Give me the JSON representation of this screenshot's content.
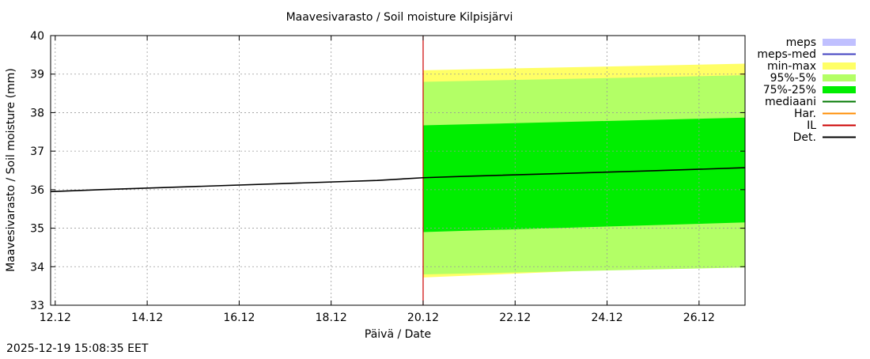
{
  "chart_data": {
    "type": "area",
    "title": "Maavesivarasto / Soil moisture   Kilpisjärvi",
    "xlabel": "Päivä / Date",
    "ylabel": "Maavesivarasto / Soil moisture (mm)",
    "xlim": [
      10.9,
      26.0
    ],
    "ylim": [
      33,
      40
    ],
    "xtick_values": [
      11.0,
      13.0,
      15.0,
      17.0,
      19.0,
      21.0,
      23.0,
      25.0
    ],
    "xtick_labels": [
      "12.12",
      "14.12",
      "16.12",
      "18.12",
      "20.12",
      "22.12",
      "24.12",
      "26.12"
    ],
    "yticks": [
      33,
      34,
      35,
      36,
      37,
      38,
      39,
      40
    ],
    "grid": true,
    "legend_position": "right",
    "vertical_marker": {
      "name": "IL",
      "x": 19.0,
      "color": "#cc0000"
    },
    "series": [
      {
        "name": "min-max",
        "kind": "band",
        "color": "#ffff66",
        "x": [
          19.0,
          26.0
        ],
        "lower": [
          33.72,
          34.07
        ],
        "upper": [
          39.1,
          39.27
        ]
      },
      {
        "name": "95%-5%",
        "kind": "band",
        "color": "#b3ff66",
        "x": [
          19.0,
          26.0
        ],
        "lower": [
          33.8,
          33.98
        ],
        "upper": [
          38.8,
          38.97
        ]
      },
      {
        "name": "75%-25%",
        "kind": "band",
        "color": "#00ee00",
        "x": [
          19.0,
          26.0
        ],
        "lower": [
          34.9,
          35.15
        ],
        "upper": [
          37.67,
          37.87
        ]
      },
      {
        "name": "Det.",
        "kind": "line",
        "color": "#000000",
        "x": [
          10.9,
          12.0,
          14.0,
          16.0,
          18.0,
          19.0,
          20.0,
          22.0,
          24.0,
          26.0
        ],
        "y": [
          35.95,
          36.0,
          36.08,
          36.16,
          36.24,
          36.31,
          36.35,
          36.42,
          36.49,
          36.57
        ]
      }
    ],
    "legend": [
      {
        "label": "meps",
        "style": "box",
        "color": "#c0c0ff"
      },
      {
        "label": "meps-med",
        "style": "line",
        "color": "#4040c0"
      },
      {
        "label": "min-max",
        "style": "box",
        "color": "#ffff66"
      },
      {
        "label": "95%-5%",
        "style": "box",
        "color": "#b3ff66"
      },
      {
        "label": "75%-25%",
        "style": "box",
        "color": "#00ee00"
      },
      {
        "label": "mediaani",
        "style": "line",
        "color": "#007700"
      },
      {
        "label": "Har.",
        "style": "line",
        "color": "#ff8c00"
      },
      {
        "label": "IL",
        "style": "line",
        "color": "#cc0000"
      },
      {
        "label": "Det.",
        "style": "line",
        "color": "#000000"
      }
    ]
  },
  "footer": {
    "timestamp": "2025-12-19 15:08:35 EET"
  }
}
